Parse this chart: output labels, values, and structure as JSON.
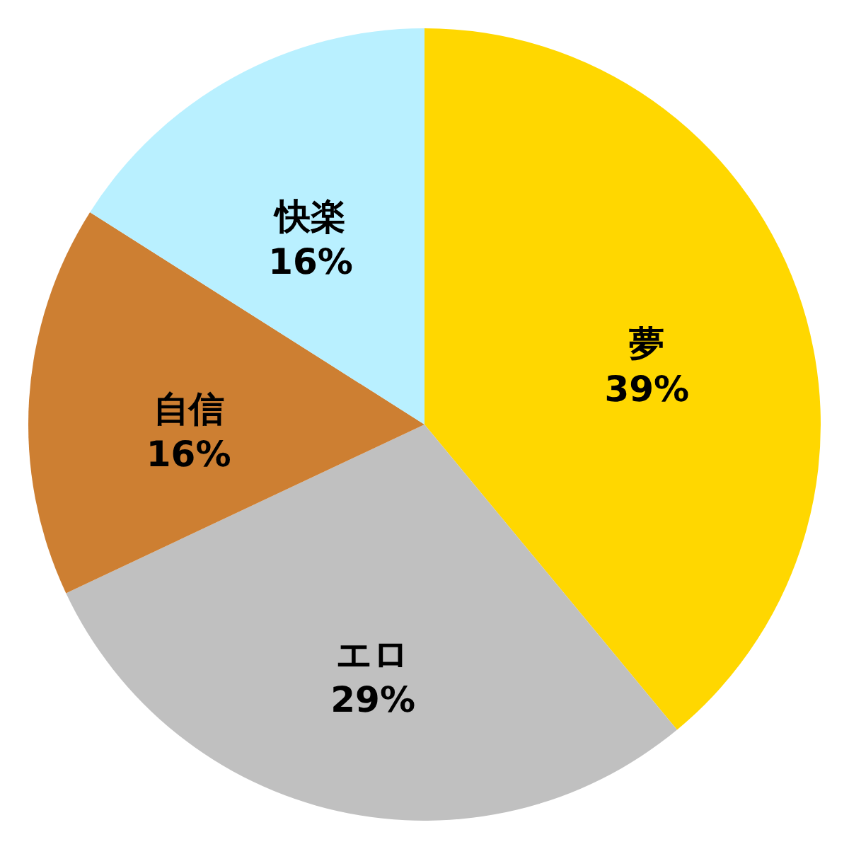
{
  "chart_data": {
    "type": "pie",
    "categories": [
      "夢",
      "エロ",
      "自信",
      "快楽"
    ],
    "values": [
      39,
      29,
      16,
      16
    ],
    "colors": [
      "#ffd700",
      "#c0c0c0",
      "#cd7f32",
      "#b9f0ff"
    ],
    "value_labels": [
      "39%",
      "29%",
      "16%",
      "16%"
    ]
  }
}
